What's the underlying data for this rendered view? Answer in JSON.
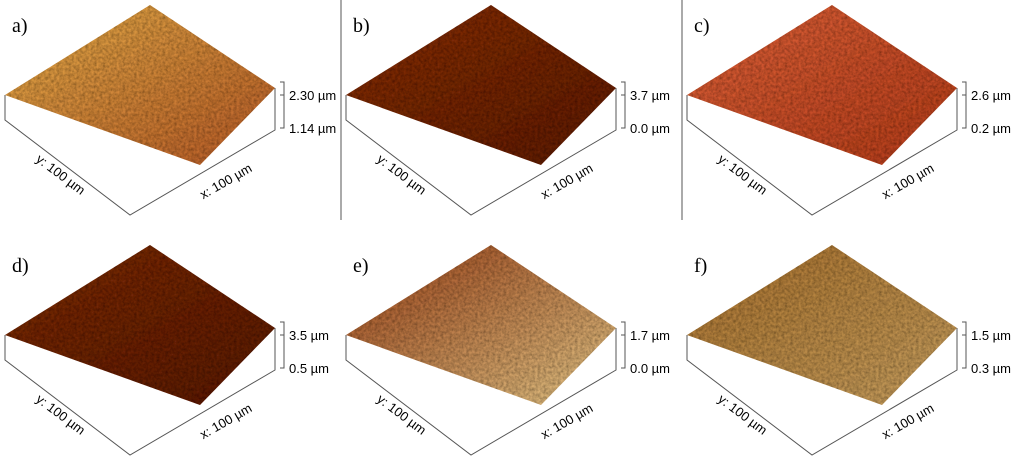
{
  "panels": [
    {
      "label": "a)",
      "x_label": "x: 100 µm",
      "y_label": "y: 100 µm",
      "z_max": "2.30 µm",
      "z_min": "1.14 µm",
      "colors": [
        "#e8b04a",
        "#b85a28"
      ]
    },
    {
      "label": "b)",
      "x_label": "x: 100 µm",
      "y_label": "y: 100 µm",
      "z_max": "3.7 µm",
      "z_min": "0.0 µm",
      "colors": [
        "#8a3214",
        "#5e1e0a"
      ]
    },
    {
      "label": "c)",
      "x_label": "x: 100 µm",
      "y_label": "y: 100 µm",
      "z_max": "2.6 µm",
      "z_min": "0.2 µm",
      "colors": [
        "#e0643a",
        "#b43c1c"
      ]
    },
    {
      "label": "d)",
      "x_label": "x: 100 µm",
      "y_label": "y: 100 µm",
      "z_max": "3.5 µm",
      "z_min": "0.5 µm",
      "colors": [
        "#7e2e12",
        "#5a1c08"
      ]
    },
    {
      "label": "e)",
      "x_label": "x: 100 µm",
      "y_label": "y: 100 µm",
      "z_max": "1.7 µm",
      "z_min": "0.0 µm",
      "colors": [
        "#9a4018",
        "#e6c888"
      ]
    },
    {
      "label": "f)",
      "x_label": "x: 100 µm",
      "y_label": "y: 100 µm",
      "z_max": "1.5 µm",
      "z_min": "0.3 µm",
      "colors": [
        "#a8702c",
        "#c8a060"
      ]
    }
  ]
}
